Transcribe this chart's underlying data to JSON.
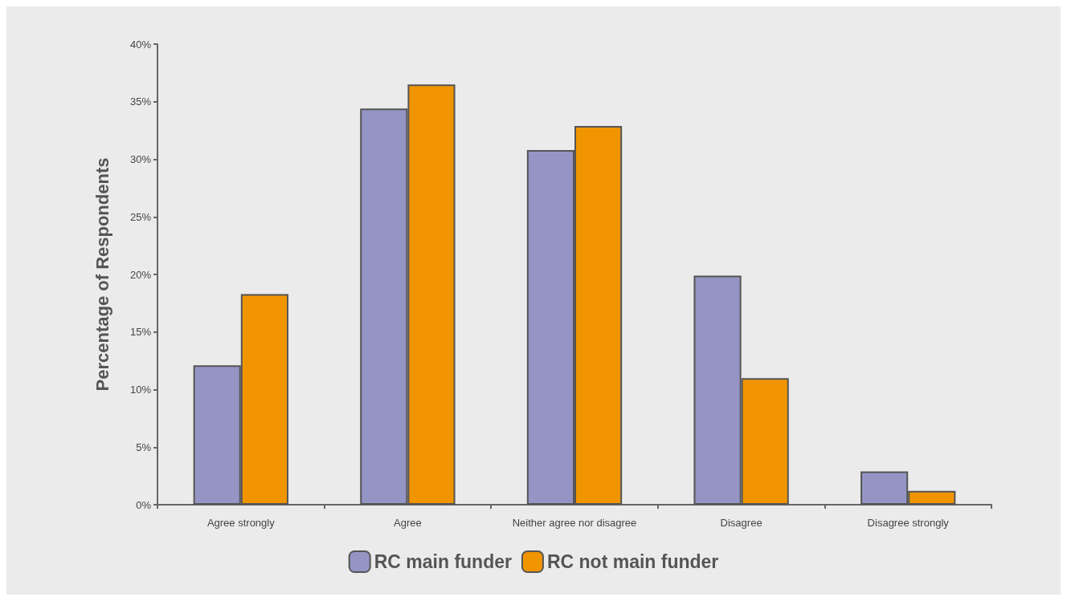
{
  "chart_data": {
    "type": "bar",
    "ylabel": "Percentage of Respondents",
    "categories": [
      "Agree strongly",
      "Agree",
      "Neither agree nor disagree",
      "Disagree",
      "Disagree strongly"
    ],
    "series": [
      {
        "name": "RC main funder",
        "color": "#9595c5",
        "values": [
          12.1,
          34.4,
          30.8,
          19.9,
          2.9
        ]
      },
      {
        "name": "RC not main funder",
        "color": "#f09500",
        "values": [
          18.3,
          36.5,
          32.9,
          11.0,
          1.2
        ]
      }
    ],
    "ylim": [
      0,
      40
    ],
    "yticks": [
      {
        "value": 0,
        "label": "0%"
      },
      {
        "value": 5,
        "label": "5%"
      },
      {
        "value": 10,
        "label": "10%"
      },
      {
        "value": 15,
        "label": "15%"
      },
      {
        "value": 20,
        "label": "20%"
      },
      {
        "value": 25,
        "label": "25%"
      },
      {
        "value": 30,
        "label": "30%"
      },
      {
        "value": 35,
        "label": "35%"
      },
      {
        "value": 40,
        "label": "40%"
      }
    ],
    "grid": false,
    "legend": "bottom"
  }
}
